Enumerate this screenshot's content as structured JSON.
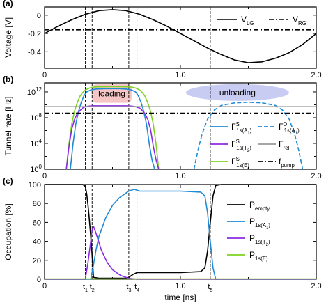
{
  "colors": {
    "black": "#000000",
    "blue": "#1f8ad6",
    "purple": "#8a2be2",
    "green": "#7ed321",
    "gray": "#9a9a9a",
    "loading_fill": "#f6c6c6",
    "loading_text": "#e0202a",
    "unloading_fill": "#c9ccf2",
    "unloading_text": "#2a2ab0"
  },
  "chart_data": [
    {
      "type": "line",
      "panel_label": "(a)",
      "ylabel": "Voltage [V]",
      "xlim": [
        0,
        2.0
      ],
      "ylim": [
        -0.58,
        0.09
      ],
      "yticks": [
        0,
        -0.2,
        -0.4
      ],
      "ytick_labels": [
        "0",
        "-0.2",
        "-0.4"
      ],
      "xticks": [
        0,
        1.0,
        2.0
      ],
      "xtick_labels": [
        "0",
        "1.0",
        "2.0"
      ],
      "series": [
        {
          "name": "V_LG",
          "legend": {
            "main": "V",
            "sub": "LG"
          },
          "style": "solid",
          "x": [
            0,
            0.1,
            0.2,
            0.3,
            0.4,
            0.5,
            0.6,
            0.7,
            0.8,
            0.9,
            1.0,
            1.1,
            1.2,
            1.3,
            1.4,
            1.5,
            1.6,
            1.7,
            1.8,
            1.9,
            2.0
          ],
          "y": [
            -0.2,
            -0.12,
            -0.05,
            0.01,
            0.05,
            0.06,
            0.05,
            0.01,
            -0.05,
            -0.12,
            -0.2,
            -0.28,
            -0.36,
            -0.43,
            -0.49,
            -0.52,
            -0.51,
            -0.47,
            -0.41,
            -0.32,
            -0.2
          ]
        },
        {
          "name": "V_RG",
          "legend": {
            "main": "V",
            "sub": "RG"
          },
          "style": "dashdot",
          "x": [
            0,
            2.0
          ],
          "y": [
            -0.16,
            -0.16
          ]
        }
      ],
      "vlines": [
        0.3,
        0.35,
        0.62,
        0.68,
        1.22
      ]
    },
    {
      "type": "line",
      "panel_label": "(b)",
      "ylabel": "Tunnel rate [Hz]",
      "yscale": "log",
      "xlim": [
        0,
        2.0
      ],
      "ylim_exp": [
        0,
        13.4
      ],
      "ytick_exps": [
        0,
        4,
        8,
        12
      ],
      "ytick_labels": [
        {
          "main": "10",
          "sup": "0"
        },
        {
          "main": "10",
          "sup": "4"
        },
        {
          "main": "10",
          "sup": "8"
        },
        {
          "main": "10",
          "sup": "12"
        }
      ],
      "xticks": [
        0,
        1.0,
        2.0
      ],
      "xtick_labels": [
        "0",
        "1.0",
        "2.0"
      ],
      "annotations": {
        "loading": "loading",
        "unloading": "unloading"
      },
      "series": [
        {
          "name": "Γ^S_1s(E)",
          "legend": {
            "main": "Γ",
            "sup": "S",
            "sub": "1s(E)"
          },
          "style": "solid",
          "color": "green",
          "x": [
            0.16,
            0.18,
            0.2,
            0.22,
            0.24,
            0.26,
            0.28,
            0.3,
            0.33,
            0.36,
            0.4,
            0.45,
            0.5,
            0.55,
            0.6,
            0.64,
            0.67,
            0.7,
            0.72,
            0.74,
            0.76,
            0.78,
            0.8,
            0.82,
            0.84
          ],
          "y_exp": [
            0,
            4.0,
            7.0,
            9.0,
            10.3,
            11.3,
            11.9,
            12.3,
            12.6,
            12.75,
            12.8,
            12.82,
            12.83,
            12.82,
            12.8,
            12.75,
            12.6,
            12.3,
            11.9,
            11.3,
            10.3,
            9.0,
            7.0,
            4.0,
            0
          ]
        },
        {
          "name": "Γ^S_1s(A1)",
          "legend": {
            "main": "Γ",
            "sup": "S",
            "sub": "1s(A",
            "subsub": "1",
            "close": ")"
          },
          "style": "solid",
          "color": "blue",
          "x": [
            0.19,
            0.21,
            0.23,
            0.25,
            0.27,
            0.29,
            0.31,
            0.34,
            0.38,
            0.45,
            0.5,
            0.55,
            0.6,
            0.64,
            0.67,
            0.69,
            0.71,
            0.73,
            0.75,
            0.77,
            0.79,
            0.81
          ],
          "y_exp": [
            0,
            4.0,
            7.0,
            9.0,
            10.4,
            11.4,
            12.0,
            12.3,
            12.45,
            12.5,
            12.5,
            12.5,
            12.45,
            12.3,
            12.0,
            11.4,
            10.4,
            9.0,
            7.0,
            4.0,
            1.5,
            0
          ]
        },
        {
          "name": "Γ^S_1s(T2)",
          "legend": {
            "main": "Γ",
            "sup": "S",
            "sub": "1s(T",
            "subsub": "2",
            "close": ")"
          },
          "style": "solid",
          "color": "purple",
          "x": [
            0.16,
            0.18,
            0.2,
            0.22,
            0.24,
            0.26,
            0.28,
            0.3,
            0.33,
            0.36,
            0.4,
            0.5,
            0.6,
            0.64,
            0.67,
            0.7,
            0.72,
            0.74,
            0.76,
            0.78,
            0.8,
            0.82,
            0.84
          ],
          "y_exp": [
            0,
            3.6,
            6.2,
            7.7,
            8.6,
            9.1,
            9.5,
            9.7,
            9.8,
            9.85,
            9.85,
            9.85,
            9.85,
            9.8,
            9.7,
            9.5,
            9.1,
            8.6,
            7.7,
            6.2,
            3.6,
            1.5,
            0
          ]
        },
        {
          "name": "Γ^D_1s(A1)",
          "legend": {
            "main": "Γ",
            "sup": "D",
            "sub": "1s(A",
            "subsub": "1",
            "close": ")"
          },
          "style": "dashed",
          "color": "blue",
          "x": [
            1.1,
            1.13,
            1.16,
            1.2,
            1.25,
            1.3,
            1.4,
            1.5,
            1.6,
            1.7,
            1.75,
            1.8,
            1.84,
            1.87,
            1.9
          ],
          "y_exp": [
            0,
            3.0,
            5.5,
            7.8,
            9.2,
            9.9,
            10.3,
            10.4,
            10.3,
            9.9,
            9.2,
            7.8,
            5.5,
            3.0,
            0
          ]
        },
        {
          "name": "Γ_rel",
          "legend": {
            "main": "Γ",
            "sub": "rel"
          },
          "style": "solid",
          "color": "gray",
          "x": [
            0,
            2.0
          ],
          "y_exp": [
            9.7,
            9.7
          ]
        },
        {
          "name": "f_pump",
          "legend": {
            "main": "f",
            "sub": "pump"
          },
          "style": "dashdot",
          "color": "black",
          "x": [
            0,
            2.0
          ],
          "y_exp": [
            8.7,
            8.7
          ]
        }
      ],
      "vlines": [
        0.3,
        0.35,
        0.62,
        0.68,
        1.22
      ]
    },
    {
      "type": "line",
      "panel_label": "(c)",
      "ylabel": "Occupation [%]",
      "xlabel": "time [ns]",
      "xlim": [
        0,
        2.0
      ],
      "ylim": [
        0,
        100
      ],
      "yticks": [
        0,
        20,
        40,
        60,
        80,
        100
      ],
      "ytick_labels": [
        "0",
        "20",
        "40",
        "60",
        "80",
        "100"
      ],
      "xticks": [
        0,
        1.0,
        2.0
      ],
      "xtick_labels": [
        "0",
        "1.0",
        "2.0"
      ],
      "time_markers": [
        {
          "t": 0.3,
          "main": "t",
          "sub": "1"
        },
        {
          "t": 0.35,
          "main": "t",
          "sub": "2"
        },
        {
          "t": 0.62,
          "main": "t",
          "sub": "3"
        },
        {
          "t": 0.68,
          "main": "t",
          "sub": "4"
        },
        {
          "t": 1.22,
          "main": "t",
          "sub": "5"
        }
      ],
      "series": [
        {
          "name": "P_empty",
          "legend": {
            "main": "P",
            "sub": "empty"
          },
          "color": "black",
          "x": [
            0,
            0.28,
            0.3,
            0.31,
            0.32,
            0.33,
            0.34,
            0.35,
            0.36,
            0.4,
            0.5,
            0.6,
            0.62,
            0.65,
            0.68,
            0.72,
            0.8,
            1.0,
            1.15,
            1.18,
            1.2,
            1.22,
            1.24,
            1.26,
            1.3,
            2.0
          ],
          "y": [
            100,
            100,
            98,
            90,
            78,
            62,
            45,
            25,
            2,
            1,
            1,
            1,
            2,
            5,
            7,
            7,
            7,
            7,
            8,
            12,
            30,
            60,
            88,
            99,
            100,
            100
          ]
        },
        {
          "name": "P_1s(A1)",
          "legend": {
            "main": "P",
            "sub": "1s(A",
            "subsub": "1",
            "close": ")"
          },
          "color": "blue",
          "x": [
            0,
            0.34,
            0.36,
            0.38,
            0.4,
            0.45,
            0.5,
            0.55,
            0.6,
            0.62,
            0.64,
            0.66,
            0.68,
            0.7,
            0.8,
            1.0,
            1.15,
            1.18,
            1.2,
            1.22,
            1.24,
            1.26,
            2.0
          ],
          "y": [
            0,
            0,
            15,
            32,
            45,
            65,
            78,
            86,
            91,
            93,
            94,
            95,
            94,
            93,
            93,
            93,
            92,
            88,
            70,
            40,
            12,
            0,
            0
          ]
        },
        {
          "name": "P_1s(T2)",
          "legend": {
            "main": "P",
            "sub": "1s(T",
            "subsub": "2",
            "close": ")"
          },
          "color": "purple",
          "x": [
            0,
            0.3,
            0.32,
            0.34,
            0.35,
            0.36,
            0.38,
            0.42,
            0.46,
            0.5,
            0.56,
            0.62,
            0.68,
            2.0
          ],
          "y": [
            0,
            0,
            18,
            40,
            52,
            56,
            48,
            30,
            18,
            10,
            4,
            1,
            0,
            0
          ]
        },
        {
          "name": "P_1s(E)",
          "legend": {
            "main": "P",
            "sub": "1s(E)"
          },
          "color": "green",
          "x": [
            0,
            2.0
          ],
          "y": [
            0.4,
            0.4
          ]
        }
      ],
      "vlines": [
        0.3,
        0.35,
        0.62,
        0.68,
        1.22
      ]
    }
  ]
}
